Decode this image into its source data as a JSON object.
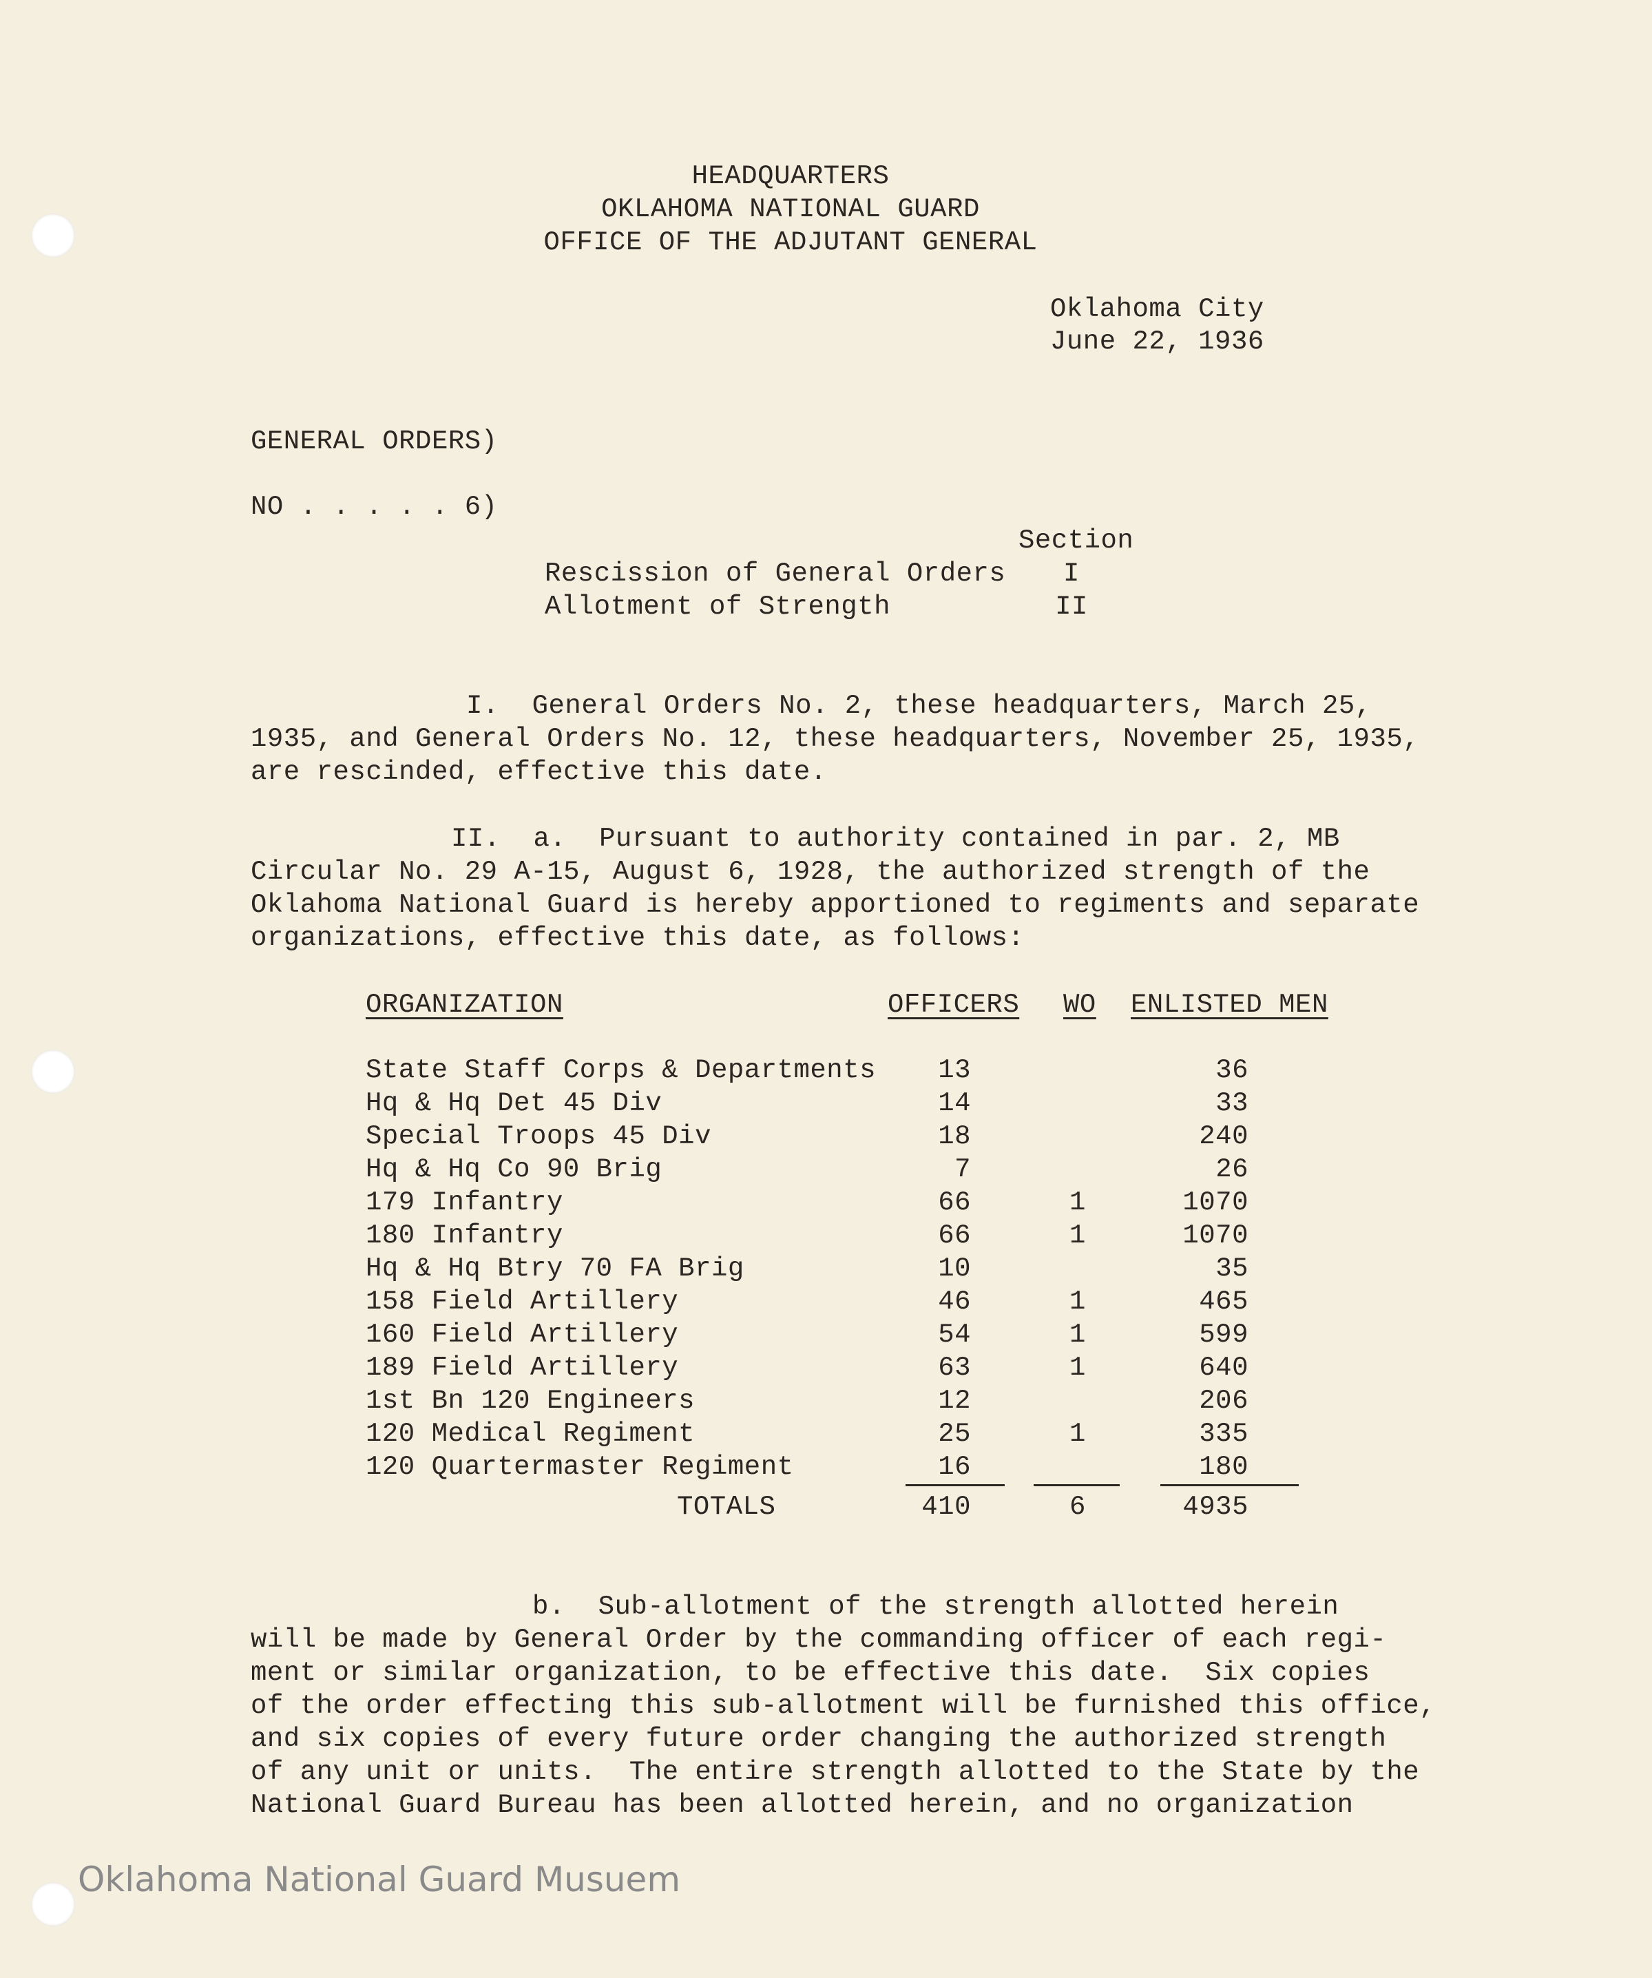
{
  "header": {
    "lines": [
      "HEADQUARTERS",
      "OKLAHOMA NATIONAL GUARD",
      "OFFICE OF THE ADJUTANT GENERAL"
    ],
    "place": "Oklahoma City",
    "date": "June 22, 1936"
  },
  "orders": {
    "line1": "GENERAL ORDERS)",
    "line2": "NO . . . . . 6)"
  },
  "contents": {
    "section_label": "Section",
    "items": [
      {
        "title": "Rescission of General Orders",
        "section": "I"
      },
      {
        "title": "Allotment of Strength",
        "section": "II"
      }
    ]
  },
  "para1": [
    "I.  General Orders No. 2, these headquarters, March 25,",
    "1935, and General Orders No. 12, these headquarters, November 25, 1935,",
    "are rescinded, effective this date."
  ],
  "para2": [
    "II.  a.  Pursuant to authority contained in par. 2, MB",
    "Circular No. 29 A-15, August 6, 1928, the authorized strength of the",
    "Oklahoma National Guard is hereby apportioned to regiments and separate",
    "organizations, effective this date, as follows:"
  ],
  "table": {
    "headers": {
      "organization": "ORGANIZATION",
      "officers": "OFFICERS",
      "wo": "WO",
      "enlisted": "ENLISTED MEN"
    },
    "rows": [
      {
        "org": "State Staff Corps & Departments",
        "officers": "13",
        "wo": "",
        "enlisted": "36"
      },
      {
        "org": "Hq & Hq Det 45 Div",
        "officers": "14",
        "wo": "",
        "enlisted": "33"
      },
      {
        "org": "Special Troops 45 Div",
        "officers": "18",
        "wo": "",
        "enlisted": "240"
      },
      {
        "org": "Hq & Hq Co 90 Brig",
        "officers": "7",
        "wo": "",
        "enlisted": "26"
      },
      {
        "org": "179 Infantry",
        "officers": "66",
        "wo": "1",
        "enlisted": "1070"
      },
      {
        "org": "180 Infantry",
        "officers": "66",
        "wo": "1",
        "enlisted": "1070"
      },
      {
        "org": "Hq & Hq Btry 70 FA Brig",
        "officers": "10",
        "wo": "",
        "enlisted": "35"
      },
      {
        "org": "158 Field Artillery",
        "officers": "46",
        "wo": "1",
        "enlisted": "465"
      },
      {
        "org": "160 Field Artillery",
        "officers": "54",
        "wo": "1",
        "enlisted": "599"
      },
      {
        "org": "189 Field Artillery",
        "officers": "63",
        "wo": "1",
        "enlisted": "640"
      },
      {
        "org": "1st Bn 120 Engineers",
        "officers": "12",
        "wo": "",
        "enlisted": "206"
      },
      {
        "org": "120 Medical Regiment",
        "officers": "25",
        "wo": "1",
        "enlisted": "335"
      },
      {
        "org": "120 Quartermaster Regiment",
        "officers": "16",
        "wo": "",
        "enlisted": "180"
      }
    ],
    "totals": {
      "label": "TOTALS",
      "officers": "410",
      "wo": "6",
      "enlisted": "4935"
    }
  },
  "para3": [
    "b.  Sub-allotment of the strength allotted herein",
    "will be made by General Order by the commanding officer of each regi-",
    "ment or similar organization, to be effective this date.  Six copies",
    "of the order effecting this sub-allotment will be furnished this office,",
    "and six copies of every future order changing the authorized strength",
    "of any unit or units.  The entire strength allotted to the State by the",
    "National Guard Bureau has been allotted herein, and no organization"
  ],
  "watermark": "Oklahoma National Guard Musuem"
}
